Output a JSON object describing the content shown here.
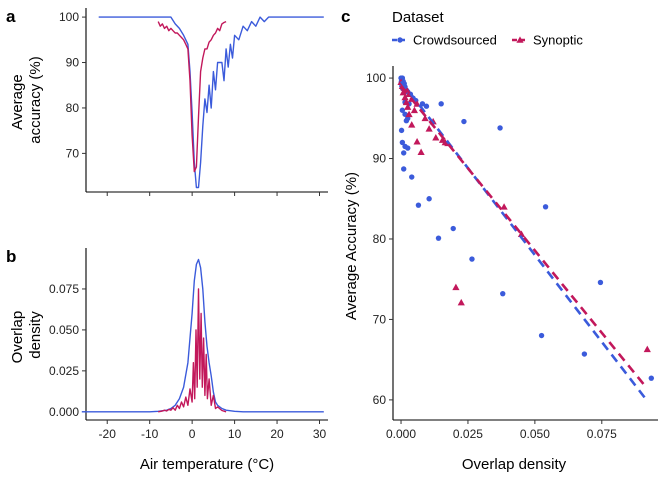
{
  "chart_data": [
    {
      "id": "a",
      "panel_label": "a",
      "type": "line",
      "ylabel": "Average\naccuracy (%)",
      "xlim": [
        -25,
        32
      ],
      "ylim": [
        61.5,
        102
      ],
      "xticks": [
        -20,
        -10,
        0,
        10,
        20,
        30
      ],
      "yticks": [
        70,
        80,
        90,
        100
      ],
      "show_x_tick_labels": false,
      "grid": false,
      "series": [
        {
          "name": "Crowdsourced",
          "color": "#3b5bdb",
          "x": [
            -22,
            -12,
            -5,
            -4,
            -3,
            -2,
            -1,
            -0.5,
            0,
            0.5,
            1,
            1.5,
            2,
            2.5,
            3,
            3.5,
            4,
            4.5,
            5,
            5.5,
            6,
            7,
            7.5,
            8,
            8.5,
            9,
            9.5,
            10,
            11,
            12,
            13,
            14,
            15,
            16,
            17,
            18,
            20,
            24,
            31
          ],
          "y": [
            100,
            100,
            100,
            98.5,
            97.5,
            96,
            94,
            88,
            79,
            68,
            62.5,
            62.5,
            68,
            76,
            82,
            79,
            85,
            80,
            88,
            84,
            90,
            90,
            86,
            93,
            89,
            94,
            91,
            96,
            95,
            98,
            97,
            99,
            98,
            100,
            99,
            100,
            100,
            100,
            100
          ]
        },
        {
          "name": "Synoptic",
          "color": "#c2185b",
          "x": [
            -8,
            -7.5,
            -7,
            -6.5,
            -6,
            -5.5,
            -5,
            -4.5,
            -4,
            -3.5,
            -3,
            -2.5,
            -2,
            -1.5,
            -1,
            -0.5,
            0,
            0.5,
            1,
            1.5,
            2,
            2.5,
            3,
            3.5,
            4,
            4.5,
            5,
            5.5,
            6,
            6.5,
            7,
            7.5,
            8
          ],
          "y": [
            99,
            98,
            98.5,
            97.5,
            98,
            97,
            97.5,
            97,
            96.5,
            96.5,
            96,
            95.5,
            95,
            94,
            93,
            86,
            74,
            66,
            67,
            78,
            88,
            91,
            93,
            93,
            94.5,
            95,
            96,
            96.5,
            97.5,
            97,
            98.5,
            98.8,
            99
          ]
        }
      ]
    },
    {
      "id": "b",
      "panel_label": "b",
      "type": "line",
      "ylabel": "Overlap\ndensity",
      "xlabel": "Air temperature (°C)",
      "xlim": [
        -25,
        32
      ],
      "ylim": [
        -0.005,
        0.1
      ],
      "xticks": [
        -20,
        -10,
        0,
        10,
        20,
        30
      ],
      "yticks": [
        0.0,
        0.025,
        0.05,
        0.075
      ],
      "ytick_labels": [
        "0.000",
        "0.025",
        "0.050",
        "0.075"
      ],
      "grid": false,
      "series": [
        {
          "name": "Crowdsourced",
          "color": "#3b5bdb",
          "x": [
            -26,
            -10,
            -8,
            -6,
            -5,
            -4,
            -3,
            -2,
            -1,
            0,
            0.5,
            1,
            1.5,
            2,
            2.5,
            3,
            3.5,
            4,
            4.5,
            5,
            5.5,
            6,
            7,
            8,
            10,
            12,
            31
          ],
          "y": [
            0.0,
            0.0,
            0.0003,
            0.001,
            0.002,
            0.004,
            0.008,
            0.015,
            0.03,
            0.06,
            0.08,
            0.09,
            0.093,
            0.088,
            0.075,
            0.055,
            0.04,
            0.03,
            0.022,
            0.012,
            0.006,
            0.004,
            0.002,
            0.001,
            0.0003,
            0.0,
            0.0
          ]
        },
        {
          "name": "Synoptic",
          "color": "#c2185b",
          "x": [
            -8,
            -7,
            -6.5,
            -6,
            -5.5,
            -5,
            -4.5,
            -4,
            -3.5,
            -3,
            -2.5,
            -2,
            -1.5,
            -1,
            -0.5,
            0,
            0.3,
            0.6,
            0.9,
            1.2,
            1.5,
            1.8,
            2.1,
            2.4,
            2.7,
            3.0,
            3.3,
            3.6,
            4,
            4.5,
            5,
            5.5,
            6,
            7,
            8
          ],
          "y": [
            0.0,
            0.0005,
            0.001,
            0.0005,
            0.0015,
            0.001,
            0.0025,
            0.001,
            0.004,
            0.002,
            0.006,
            0.003,
            0.009,
            0.004,
            0.014,
            0.006,
            0.03,
            0.008,
            0.05,
            0.015,
            0.075,
            0.02,
            0.06,
            0.015,
            0.045,
            0.01,
            0.035,
            0.008,
            0.02,
            0.004,
            0.01,
            0.002,
            0.003,
            0.0008,
            0.0
          ]
        }
      ]
    },
    {
      "id": "c",
      "panel_label": "c",
      "type": "scatter",
      "xlabel": "Overlap density",
      "ylabel": "Average Accuracy (%)",
      "xlim": [
        -0.003,
        0.096
      ],
      "ylim": [
        57.5,
        101.5
      ],
      "xticks": [
        0.0,
        0.025,
        0.05,
        0.075
      ],
      "xtick_labels": [
        "0.000",
        "0.025",
        "0.050",
        "0.075"
      ],
      "yticks": [
        60,
        70,
        80,
        90,
        100
      ],
      "grid": false,
      "legend": {
        "title": "Dataset",
        "placement": "top",
        "entries": [
          "Crowdsourced",
          "Synoptic"
        ]
      },
      "series": [
        {
          "name": "Crowdsourced",
          "color": "#3b5bdb",
          "marker": "circle",
          "points": [
            [
              0.0,
              100
            ],
            [
              0.0005,
              100
            ],
            [
              0.0002,
              99.7
            ],
            [
              0.0008,
              99.6
            ],
            [
              0.0001,
              99.5
            ],
            [
              0.0012,
              99.3
            ],
            [
              0.0003,
              99.0
            ],
            [
              0.0015,
              98.9
            ],
            [
              0.0006,
              98.7
            ],
            [
              0.002,
              98.5
            ],
            [
              0.0025,
              98.3
            ],
            [
              0.0035,
              98.0
            ],
            [
              0.0045,
              97.5
            ],
            [
              0.0055,
              97.2
            ],
            [
              0.0015,
              97.0
            ],
            [
              0.003,
              96.8
            ],
            [
              0.008,
              96.8
            ],
            [
              0.0095,
              96.5
            ],
            [
              0.0005,
              96.0
            ],
            [
              0.0015,
              95.5
            ],
            [
              0.0025,
              95.0
            ],
            [
              0.002,
              94.7
            ],
            [
              0.0002,
              93.5
            ],
            [
              0.0005,
              92.0
            ],
            [
              0.0015,
              91.5
            ],
            [
              0.0025,
              91.3
            ],
            [
              0.001,
              90.7
            ],
            [
              0.001,
              88.7
            ],
            [
              0.004,
              87.7
            ],
            [
              0.0065,
              84.2
            ],
            [
              0.0105,
              85.0
            ],
            [
              0.0235,
              94.6
            ],
            [
              0.037,
              93.8
            ],
            [
              0.015,
              96.8
            ],
            [
              0.054,
              84.0
            ],
            [
              0.0195,
              81.3
            ],
            [
              0.014,
              80.1
            ],
            [
              0.0265,
              77.5
            ],
            [
              0.038,
              73.2
            ],
            [
              0.0525,
              68.0
            ],
            [
              0.0685,
              65.7
            ],
            [
              0.0745,
              74.6
            ],
            [
              0.0935,
              62.7
            ]
          ]
        },
        {
          "name": "Synoptic",
          "color": "#c2185b",
          "marker": "triangle",
          "points": [
            [
              0.0,
              99.5
            ],
            [
              0.0005,
              99.0
            ],
            [
              0.0012,
              98.8
            ],
            [
              0.002,
              98.6
            ],
            [
              0.0008,
              98.2
            ],
            [
              0.003,
              98.0
            ],
            [
              0.0015,
              97.6
            ],
            [
              0.004,
              97.4
            ],
            [
              0.002,
              97.0
            ],
            [
              0.006,
              96.8
            ],
            [
              0.0025,
              96.4
            ],
            [
              0.005,
              96.0
            ],
            [
              0.003,
              95.5
            ],
            [
              0.009,
              95.0
            ],
            [
              0.004,
              94.2
            ],
            [
              0.012,
              94.6
            ],
            [
              0.0105,
              93.7
            ],
            [
              0.013,
              92.6
            ],
            [
              0.006,
              92.1
            ],
            [
              0.0155,
              92.3
            ],
            [
              0.0165,
              92.0
            ],
            [
              0.0175,
              91.9
            ],
            [
              0.0075,
              90.8
            ],
            [
              0.0385,
              84.0
            ],
            [
              0.045,
              80.6
            ],
            [
              0.0205,
              74.0
            ],
            [
              0.0225,
              72.1
            ],
            [
              0.092,
              66.3
            ]
          ]
        }
      ],
      "trend_lines": [
        {
          "name": "Crowdsourced",
          "color": "#3b5bdb",
          "style": "dashed",
          "x": [
            0.0,
            0.091
          ],
          "y": [
            99.6,
            60.3
          ]
        },
        {
          "name": "Synoptic",
          "color": "#c2185b",
          "style": "dashed",
          "x": [
            0.0,
            0.091
          ],
          "y": [
            99.0,
            61.8
          ]
        }
      ]
    }
  ]
}
